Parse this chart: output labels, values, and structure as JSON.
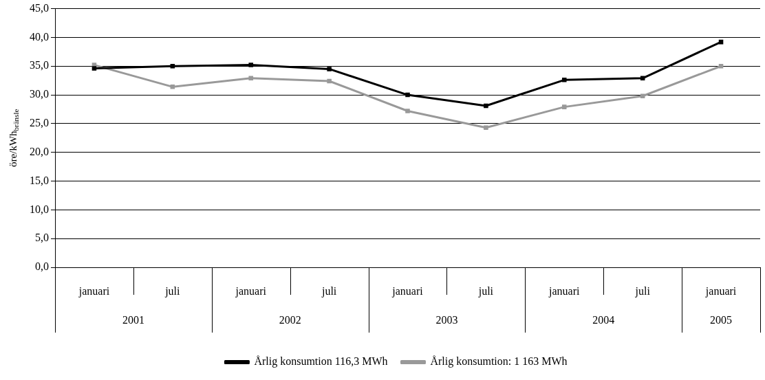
{
  "chart_data": {
    "type": "line",
    "ylabel": "öre/kWh$_{bränsle}$",
    "categories": [
      "januari",
      "juli",
      "januari",
      "juli",
      "januari",
      "juli",
      "januari",
      "juli",
      "januari"
    ],
    "annotations": [
      "2001",
      "2002",
      "2003",
      "2004",
      "2005"
    ],
    "series": [
      {
        "name": "Årlig konsumtion 116,3 MWh",
        "color": "#000000",
        "values": [
          34.6,
          35.0,
          35.2,
          34.5,
          30.0,
          28.1,
          32.6,
          32.9,
          39.2
        ]
      },
      {
        "name": "Årlig konsumtion: 1 163 MWh",
        "color": "#999999",
        "values": [
          35.2,
          31.4,
          32.9,
          32.4,
          27.2,
          24.3,
          27.9,
          29.8,
          35.0
        ]
      }
    ],
    "ylim": [
      0,
      45
    ],
    "yticks": [
      {
        "value": 0,
        "label": "0,0"
      },
      {
        "value": 5,
        "label": "5,0"
      },
      {
        "value": 10,
        "label": "10,0"
      },
      {
        "value": 15,
        "label": "15,0"
      },
      {
        "value": 20,
        "label": "20,0"
      },
      {
        "value": 25,
        "label": "25,0"
      },
      {
        "value": 30,
        "label": "30,0"
      },
      {
        "value": 35,
        "label": "35,0"
      },
      {
        "value": 40,
        "label": "40,0"
      },
      {
        "value": 45,
        "label": "45,0"
      }
    ],
    "grid": "y",
    "legend": "bottom",
    "marker": "square",
    "line_style": "solid"
  }
}
